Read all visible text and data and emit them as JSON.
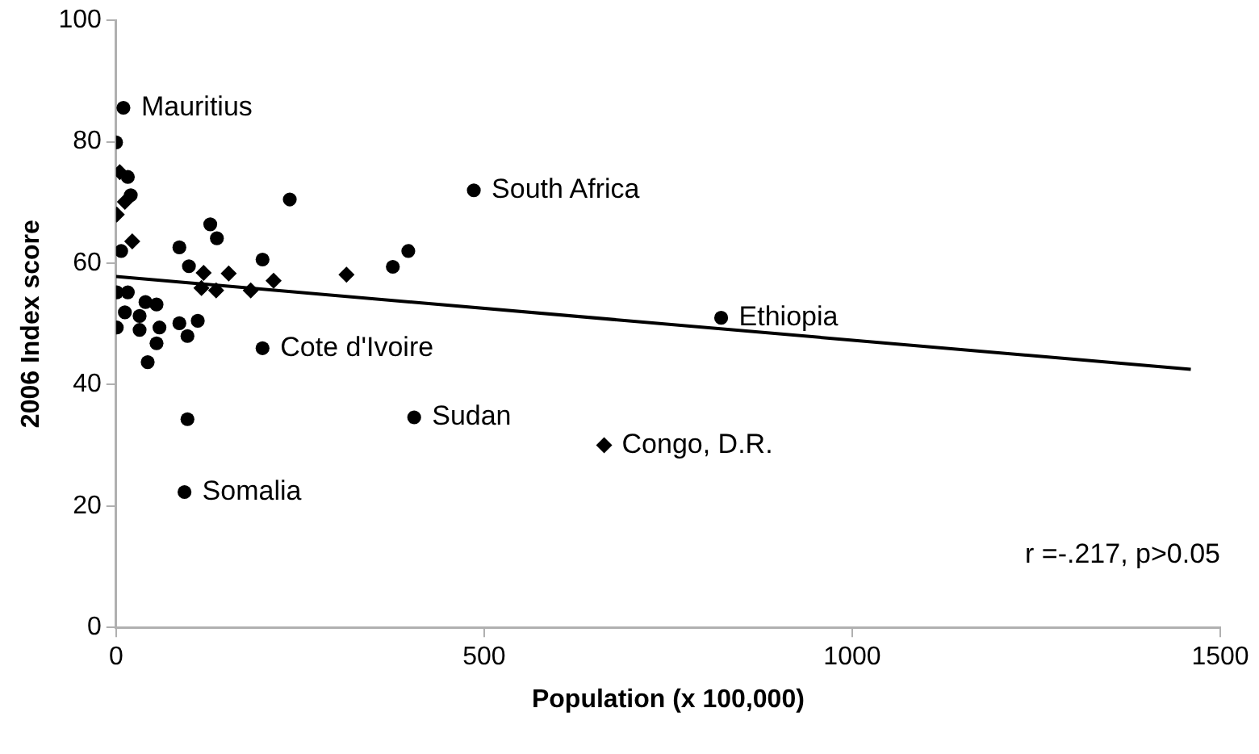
{
  "chart_data": {
    "type": "scatter",
    "xlabel": "Population (x 100,000)",
    "ylabel": "2006 Index score",
    "xlim": [
      0,
      1500
    ],
    "xticks": [
      0,
      500,
      1000,
      1500
    ],
    "ylim": [
      0,
      100
    ],
    "yticks": [
      0,
      20,
      40,
      60,
      80,
      100
    ],
    "grid": false,
    "legend": false,
    "series": [
      {
        "color": "#000000",
        "marker": "circle",
        "x": [
          10,
          0,
          16,
          20,
          236,
          486,
          128,
          137,
          7,
          86,
          397,
          376,
          199,
          99,
          1,
          16,
          40,
          55,
          12,
          32,
          1,
          32,
          59,
          86,
          111,
          97,
          55,
          43,
          199,
          97,
          405,
          93,
          822
        ],
        "values": [
          85.6,
          79.9,
          74.2,
          71.2,
          70.5,
          72,
          66.4,
          64.1,
          62,
          62.6,
          62,
          59.4,
          60.6,
          59.5,
          55.2,
          55.2,
          53.6,
          53.2,
          51.9,
          51.3,
          49.4,
          49,
          49.4,
          50.1,
          50.5,
          48,
          46.8,
          43.7,
          46,
          34.3,
          34.6,
          22.3,
          51
        ]
      },
      {
        "color": "#000000",
        "marker": "diamond",
        "x": [
          5,
          12,
          1,
          22,
          119,
          153,
          313,
          214,
          136,
          183,
          116,
          663
        ],
        "values": [
          75,
          70.1,
          68,
          63.6,
          58.4,
          58.3,
          58.1,
          57.1,
          55.5,
          55.5,
          55.9,
          30
        ]
      },
      {
        "type": "line",
        "color": "#000000",
        "marker": "none",
        "line_style": "solid",
        "x": [
          0,
          1460
        ],
        "values": [
          57.8,
          42.5
        ]
      }
    ],
    "annotations": [
      {
        "text": "Mauritius",
        "x": 10,
        "y": 85.6
      },
      {
        "text": "South Africa",
        "x": 486,
        "y": 72
      },
      {
        "text": "Ethiopia",
        "x": 822,
        "y": 51
      },
      {
        "text": "Cote d'Ivoire",
        "x": 199,
        "y": 46
      },
      {
        "text": "Sudan",
        "x": 405,
        "y": 34.6
      },
      {
        "text": "Congo, D.R.",
        "x": 663,
        "y": 30
      },
      {
        "text": "Somalia",
        "x": 93,
        "y": 22.3
      },
      "r =-.217, p>0.05"
    ]
  }
}
